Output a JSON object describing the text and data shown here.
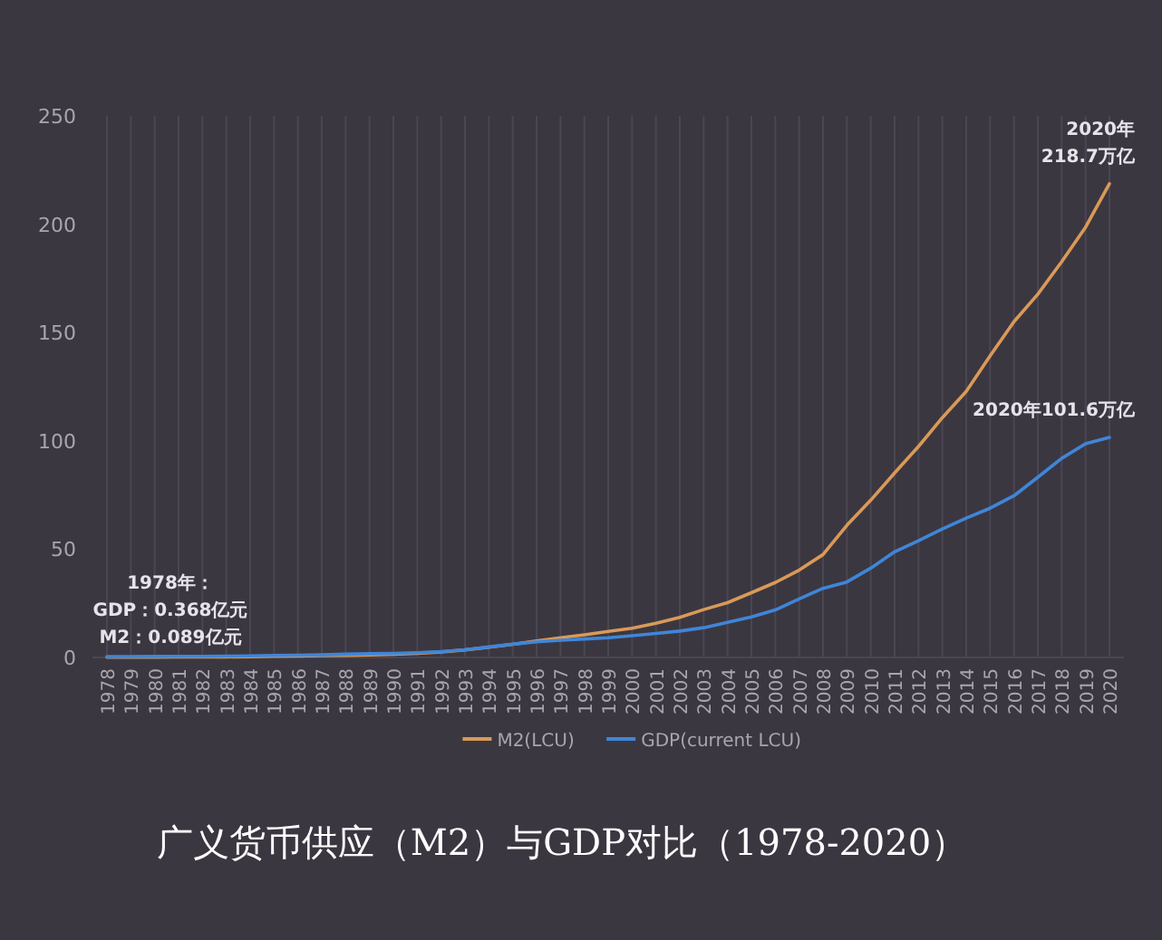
{
  "chart_data": {
    "type": "line",
    "title": "广义货币供应（M2）与GDP对比（1978-2020）",
    "categories": [
      "1978",
      "1979",
      "1980",
      "1981",
      "1982",
      "1983",
      "1984",
      "1985",
      "1986",
      "1987",
      "1988",
      "1989",
      "1990",
      "1991",
      "1992",
      "1993",
      "1994",
      "1995",
      "1996",
      "1997",
      "1998",
      "1999",
      "2000",
      "2001",
      "2002",
      "2003",
      "2004",
      "2005",
      "2006",
      "2007",
      "2008",
      "2009",
      "2010",
      "2011",
      "2012",
      "2013",
      "2014",
      "2015",
      "2016",
      "2017",
      "2018",
      "2019",
      "2020"
    ],
    "series": [
      {
        "name": "M2(LCU)",
        "color": "#d99a57",
        "values": [
          0.09,
          0.11,
          0.15,
          0.18,
          0.21,
          0.26,
          0.36,
          0.49,
          0.63,
          0.83,
          1.01,
          1.2,
          1.53,
          1.93,
          2.54,
          3.49,
          4.69,
          6.07,
          7.61,
          9.1,
          10.45,
          11.99,
          13.46,
          15.83,
          18.5,
          22.1,
          25.3,
          29.9,
          34.6,
          40.3,
          47.5,
          61,
          72.6,
          85.2,
          97.4,
          110.7,
          122.8,
          139.2,
          155,
          167.7,
          182.7,
          198.6,
          218.7
        ]
      },
      {
        "name": "GDP(current LCU)",
        "color": "#3f86d8",
        "values": [
          0.37,
          0.41,
          0.46,
          0.49,
          0.54,
          0.6,
          0.73,
          0.91,
          1.04,
          1.22,
          1.51,
          1.72,
          1.89,
          2.2,
          2.72,
          3.57,
          4.86,
          6.13,
          7.18,
          7.97,
          8.52,
          9.06,
          10.03,
          11.09,
          12.17,
          13.74,
          16.18,
          18.73,
          21.94,
          27.01,
          31.92,
          34.85,
          41.21,
          48.79,
          53.86,
          59.3,
          64.36,
          68.89,
          74.64,
          83.2,
          91.93,
          98.65,
          101.6
        ]
      }
    ],
    "ylim": [
      0,
      250
    ],
    "yticks": [
      0,
      50,
      100,
      150,
      200,
      250
    ],
    "grid": "x",
    "legend": "bottom",
    "line_style": "solid",
    "marker": "none",
    "annotations": [
      {
        "text": "1978年：\nGDP：0.368亿元\nM2：0.089亿元",
        "x": "1978",
        "y": 0.09
      },
      {
        "text": "2020年\n218.7万亿",
        "x": "2020",
        "y": 218.7
      },
      {
        "text": "2020年101.6万亿",
        "x": "2020",
        "y": 101.6
      }
    ]
  }
}
